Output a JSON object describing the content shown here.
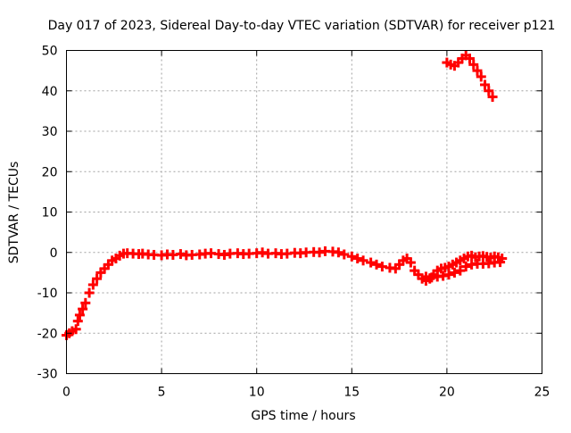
{
  "chart_data": {
    "type": "scatter",
    "title": "Day 017 of 2023, Sidereal Day-to-day VTEC variation (SDTVAR) for receiver p121",
    "xlabel": "GPS time / hours",
    "ylabel": "SDTVAR / TECUs",
    "xlim": [
      0,
      25
    ],
    "ylim": [
      -30,
      50
    ],
    "xticks": [
      0,
      5,
      10,
      15,
      20,
      25
    ],
    "yticks": [
      -30,
      -20,
      -10,
      0,
      10,
      20,
      30,
      40,
      50
    ],
    "grid": true,
    "legend": "none",
    "marker": "plus",
    "color": "#ff0000",
    "series": [
      {
        "name": "SDTVAR",
        "x": [
          0.0,
          0.15,
          0.3,
          0.5,
          0.6,
          0.7,
          0.85,
          1.0,
          1.2,
          1.4,
          1.6,
          1.8,
          2.0,
          2.2,
          2.4,
          2.6,
          2.8,
          3.0,
          3.2,
          3.5,
          3.8,
          4.0,
          4.3,
          4.6,
          5.0,
          5.3,
          5.6,
          6.0,
          6.3,
          6.6,
          7.0,
          7.3,
          7.6,
          8.0,
          8.3,
          8.6,
          9.0,
          9.3,
          9.6,
          10.0,
          10.3,
          10.6,
          11.0,
          11.3,
          11.6,
          12.0,
          12.3,
          12.6,
          13.0,
          13.3,
          13.6,
          14.0,
          14.3,
          14.6,
          15.0,
          15.3,
          15.6,
          16.0,
          16.3,
          16.6,
          17.0,
          17.3,
          17.5,
          17.7,
          17.9,
          18.1,
          18.3,
          18.5,
          18.7,
          18.9,
          19.1,
          19.3,
          19.5,
          19.7,
          19.9,
          20.1,
          20.3,
          20.5,
          20.7,
          20.9,
          21.1,
          21.3,
          21.5,
          21.7,
          21.9,
          22.1,
          22.3,
          22.5,
          22.7,
          22.9,
          18.9,
          19.2,
          19.5,
          19.8,
          20.1,
          20.4,
          20.7,
          21.0,
          21.3,
          21.6,
          21.9,
          22.2,
          22.5,
          22.8,
          20.0,
          20.2,
          20.4,
          20.6,
          20.8,
          21.0,
          21.2,
          21.4,
          21.6,
          21.8,
          22.0,
          22.2,
          22.4
        ],
        "y": [
          -20.5,
          -20.0,
          -19.5,
          -19.0,
          -17.0,
          -15.5,
          -14.0,
          -12.5,
          -10.0,
          -8.0,
          -6.5,
          -5.0,
          -4.0,
          -3.0,
          -2.0,
          -1.5,
          -0.8,
          -0.3,
          -0.2,
          -0.3,
          -0.4,
          -0.3,
          -0.5,
          -0.6,
          -0.7,
          -0.5,
          -0.6,
          -0.4,
          -0.7,
          -0.6,
          -0.5,
          -0.3,
          -0.2,
          -0.4,
          -0.6,
          -0.3,
          -0.2,
          -0.4,
          -0.3,
          -0.2,
          0.0,
          -0.3,
          -0.2,
          -0.4,
          -0.3,
          -0.1,
          -0.2,
          0.0,
          0.1,
          0.0,
          0.3,
          0.2,
          0.0,
          -0.5,
          -1.0,
          -1.5,
          -2.0,
          -2.5,
          -3.0,
          -3.5,
          -3.8,
          -4.0,
          -3.0,
          -2.0,
          -1.5,
          -2.5,
          -4.5,
          -5.5,
          -6.5,
          -7.0,
          -6.5,
          -5.5,
          -4.5,
          -4.0,
          -3.8,
          -3.5,
          -3.0,
          -2.5,
          -2.0,
          -1.5,
          -1.0,
          -0.8,
          -1.2,
          -1.0,
          -0.9,
          -1.1,
          -1.3,
          -1.0,
          -1.2,
          -1.5,
          -6.0,
          -6.2,
          -6.0,
          -5.8,
          -5.5,
          -5.0,
          -4.5,
          -3.5,
          -3.0,
          -2.8,
          -2.8,
          -2.7,
          -2.5,
          -2.4,
          47.0,
          46.5,
          46.2,
          47.0,
          48.0,
          48.8,
          48.0,
          46.5,
          45.0,
          43.5,
          41.5,
          40.0,
          38.5
        ]
      }
    ]
  }
}
